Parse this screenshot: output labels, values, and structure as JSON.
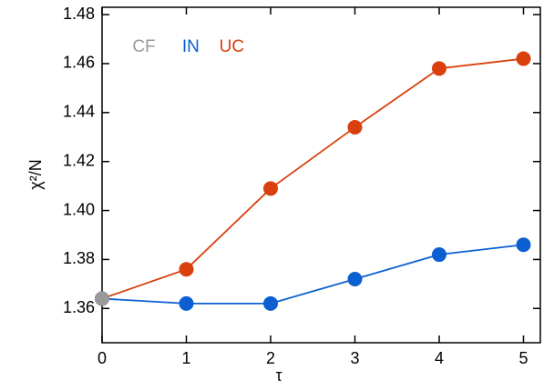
{
  "chart_data": {
    "type": "line",
    "xlabel": "τ",
    "ylabel": "χ²/N",
    "x": [
      0,
      1,
      2,
      3,
      4,
      5
    ],
    "series": [
      {
        "name": "CF",
        "color": "#9a9a9a",
        "values": [
          1.364,
          null,
          null,
          null,
          null,
          null
        ]
      },
      {
        "name": "IN",
        "color": "#0b5fd1",
        "values": [
          1.364,
          1.362,
          1.362,
          1.372,
          1.382,
          1.386
        ]
      },
      {
        "name": "UC",
        "color": "#d9400e",
        "values": [
          1.364,
          1.376,
          1.409,
          1.434,
          1.458,
          1.462
        ]
      }
    ],
    "xlim": [
      0,
      5.2
    ],
    "xticks": [
      0,
      1,
      2,
      3,
      4,
      5
    ],
    "ylim": [
      1.346,
      1.483
    ],
    "yticks": [
      1.36,
      1.38,
      {
        "value": 1.4,
        "label": "1.40"
      },
      1.42,
      1.44,
      1.46,
      1.48
    ],
    "legend": "upper left",
    "grid": false
  }
}
